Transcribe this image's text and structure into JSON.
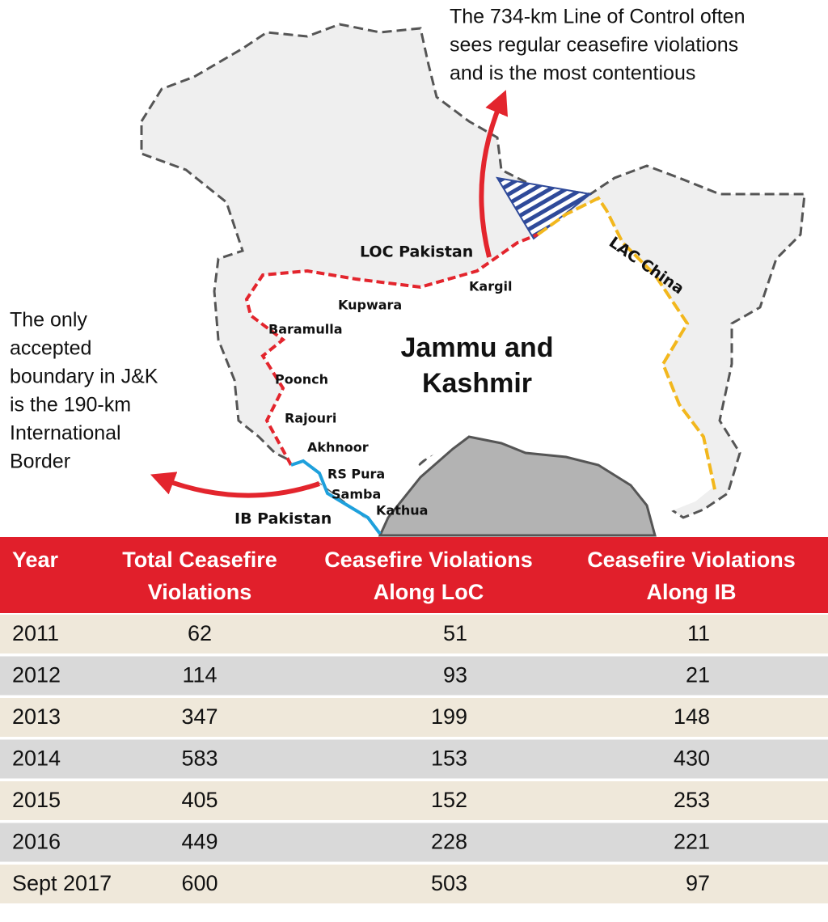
{
  "annotations": {
    "loc_note": [
      "The 734-km Line of Control often",
      "sees regular ceasefire violations",
      "and is the most contentious"
    ],
    "ib_note": [
      "The only",
      "accepted",
      "boundary in J&K",
      "is the 190-km",
      "International",
      "Border"
    ]
  },
  "map": {
    "region": [
      "Jammu and",
      "Kashmir"
    ],
    "boundaries": {
      "loc": "LOC Pakistan",
      "lac": "LAC China",
      "ib": "IB Pakistan"
    },
    "places": [
      "Kargil",
      "Kupwara",
      "Baramulla",
      "Poonch",
      "Rajouri",
      "Akhnoor",
      "RS Pura",
      "Samba",
      "Kathua"
    ]
  },
  "table": {
    "header": [
      [
        "Year"
      ],
      [
        "Total Ceasefire",
        "Violations"
      ],
      [
        "Ceasefire Violations",
        "Along LoC"
      ],
      [
        "Ceasefire Violations",
        "Along IB"
      ]
    ],
    "rows": [
      [
        2011,
        62,
        51,
        11
      ],
      [
        2012,
        114,
        93,
        21
      ],
      [
        2013,
        347,
        199,
        148
      ],
      [
        2014,
        583,
        153,
        430
      ],
      [
        2015,
        405,
        152,
        253
      ],
      [
        2016,
        449,
        228,
        221
      ],
      [
        "Sept 2017",
        600,
        503,
        97
      ]
    ]
  }
}
